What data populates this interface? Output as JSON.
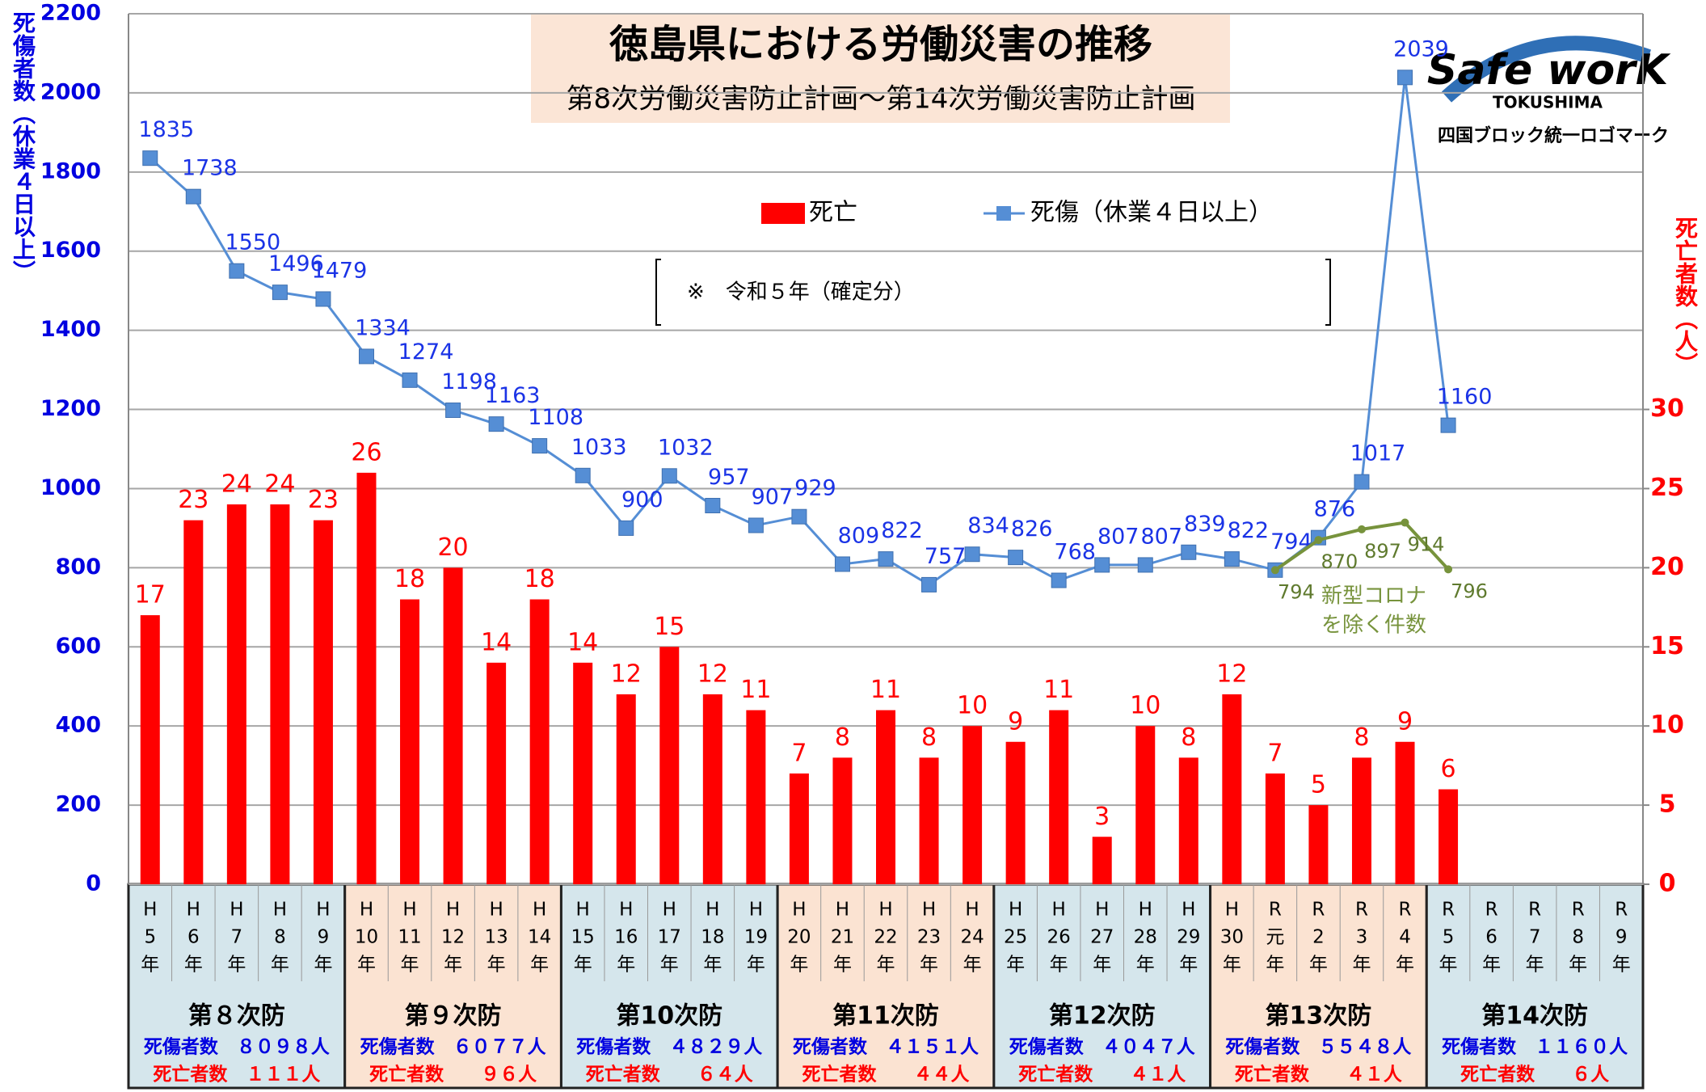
{
  "chart_data": {
    "type": "bar",
    "title": "徳島県における労働災害の推移",
    "subtitle": "第8次労働災害防止計画～第14次労働災害防止計画",
    "note": "※　令和５年（確定分）",
    "y_label": "死傷者数（休業４日以上）",
    "y2_label": "死亡者数（人）",
    "categories": [
      [
        "H",
        "5",
        "年"
      ],
      [
        "H",
        "6",
        "年"
      ],
      [
        "H",
        "7",
        "年"
      ],
      [
        "H",
        "8",
        "年"
      ],
      [
        "H",
        "9",
        "年"
      ],
      [
        "H",
        "10",
        "年"
      ],
      [
        "H",
        "11",
        "年"
      ],
      [
        "H",
        "12",
        "年"
      ],
      [
        "H",
        "13",
        "年"
      ],
      [
        "H",
        "14",
        "年"
      ],
      [
        "H",
        "15",
        "年"
      ],
      [
        "H",
        "16",
        "年"
      ],
      [
        "H",
        "17",
        "年"
      ],
      [
        "H",
        "18",
        "年"
      ],
      [
        "H",
        "19",
        "年"
      ],
      [
        "H",
        "20",
        "年"
      ],
      [
        "H",
        "21",
        "年"
      ],
      [
        "H",
        "22",
        "年"
      ],
      [
        "H",
        "23",
        "年"
      ],
      [
        "H",
        "24",
        "年"
      ],
      [
        "H",
        "25",
        "年"
      ],
      [
        "H",
        "26",
        "年"
      ],
      [
        "H",
        "27",
        "年"
      ],
      [
        "H",
        "28",
        "年"
      ],
      [
        "H",
        "29",
        "年"
      ],
      [
        "H",
        "30",
        "年"
      ],
      [
        "R",
        "元",
        "年"
      ],
      [
        "R",
        "2",
        "年"
      ],
      [
        "R",
        "3",
        "年"
      ],
      [
        "R",
        "4",
        "年"
      ],
      [
        "R",
        "5",
        "年"
      ],
      [
        "R",
        "6",
        "年"
      ],
      [
        "R",
        "7",
        "年"
      ],
      [
        "R",
        "8",
        "年"
      ],
      [
        "R",
        "9",
        "年"
      ]
    ],
    "series": [
      {
        "name": "死亡",
        "type": "bar",
        "axis": "y2",
        "color": "#ff0000",
        "values": [
          17,
          23,
          24,
          24,
          23,
          26,
          18,
          20,
          14,
          18,
          14,
          12,
          15,
          12,
          11,
          7,
          8,
          11,
          8,
          10,
          9,
          11,
          3,
          10,
          8,
          12,
          7,
          5,
          8,
          9,
          6,
          null,
          null,
          null,
          null
        ]
      },
      {
        "name": "死傷（休業４日以上）",
        "type": "line",
        "color": "#558ed5",
        "label_color": "#1a33e6",
        "values": [
          1835,
          1738,
          1550,
          1496,
          1479,
          1334,
          1274,
          1198,
          1163,
          1108,
          1033,
          900,
          1032,
          957,
          907,
          929,
          809,
          822,
          757,
          834,
          826,
          768,
          807,
          807,
          839,
          822,
          794,
          876,
          1017,
          2039,
          1160,
          null,
          null,
          null,
          null
        ]
      },
      {
        "type": "line",
        "color": "#77933c",
        "label_color": "#5f7a2e",
        "values": [
          null,
          null,
          null,
          null,
          null,
          null,
          null,
          null,
          null,
          null,
          null,
          null,
          null,
          null,
          null,
          null,
          null,
          null,
          null,
          null,
          null,
          null,
          null,
          null,
          null,
          null,
          794,
          870,
          897,
          914,
          796,
          null,
          null,
          null,
          null
        ]
      }
    ],
    "annotations": [
      "新型コロナ",
      "を除く件数"
    ],
    "ylim": [
      0,
      2200
    ],
    "yticks": [
      0,
      200,
      400,
      600,
      800,
      1000,
      1200,
      1400,
      1600,
      1800,
      2000,
      2200
    ],
    "y2lim": [
      0,
      55
    ],
    "y2ticks": [
      0,
      5,
      10,
      15,
      20,
      25,
      30
    ],
    "grid": true,
    "periods": [
      {
        "name": "第８次防",
        "casualties": "死傷者数　８０９８人",
        "deaths": "死亡者数　１１１人",
        "color": "#d5e6ec"
      },
      {
        "name": "第９次防",
        "casualties": "死傷者数　６０７７人",
        "deaths": "死亡者数　　９６人",
        "color": "#fbe3d2"
      },
      {
        "name": "第10次防",
        "casualties": "死傷者数　４８２９人",
        "deaths": "死亡者数　　６４人",
        "color": "#d5e6ec"
      },
      {
        "name": "第11次防",
        "casualties": "死傷者数　４１５１人",
        "deaths": "死亡者数　　４４人",
        "color": "#fbe3d2"
      },
      {
        "name": "第12次防",
        "casualties": "死傷者数　４０４７人",
        "deaths": "死亡者数　　４１人",
        "color": "#d5e6ec"
      },
      {
        "name": "第13次防",
        "casualties": "死傷者数　５５４８人",
        "deaths": "死亡者数　　４１人",
        "color": "#fbe3d2"
      },
      {
        "name": "第14次防",
        "casualties": "死傷者数　１１６０人",
        "deaths": "死亡者数　　６人",
        "color": "#d5e6ec"
      }
    ],
    "logo": {
      "text": "Safe worK",
      "sub": "TOKUSHIMA",
      "caption": "四国ブロック統一ロゴマーク"
    }
  }
}
